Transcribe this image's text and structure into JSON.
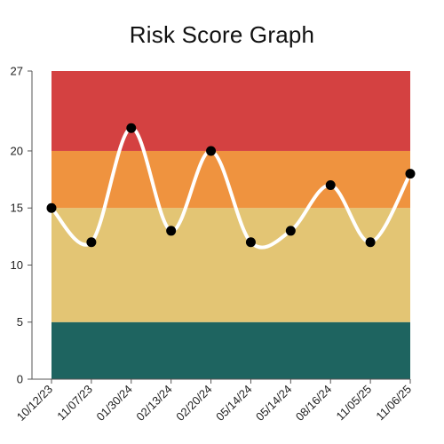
{
  "chart_data": {
    "type": "line",
    "title": "Risk Score Graph",
    "xlabel": "",
    "ylabel": "",
    "categories": [
      "10/12/23",
      "11/07/23",
      "01/30/24",
      "02/13/24",
      "02/20/24",
      "05/14/24",
      "05/14/24",
      "08/16/24",
      "11/05/25",
      "11/06/25"
    ],
    "values": [
      15,
      12,
      22,
      13,
      20,
      12,
      13,
      17,
      12,
      18
    ],
    "ylim": [
      0,
      27
    ],
    "yticks": [
      0,
      5,
      10,
      15,
      20,
      27
    ],
    "bands": [
      {
        "from": 0,
        "to": 5,
        "color": "#1e6460"
      },
      {
        "from": 5,
        "to": 15,
        "color": "#e3c574"
      },
      {
        "from": 15,
        "to": 20,
        "color": "#ef933f"
      },
      {
        "from": 20,
        "to": 27,
        "color": "#d44141"
      }
    ],
    "line_color": "#ffffff",
    "marker_color": "#000000",
    "grid": false,
    "legend": "none"
  }
}
